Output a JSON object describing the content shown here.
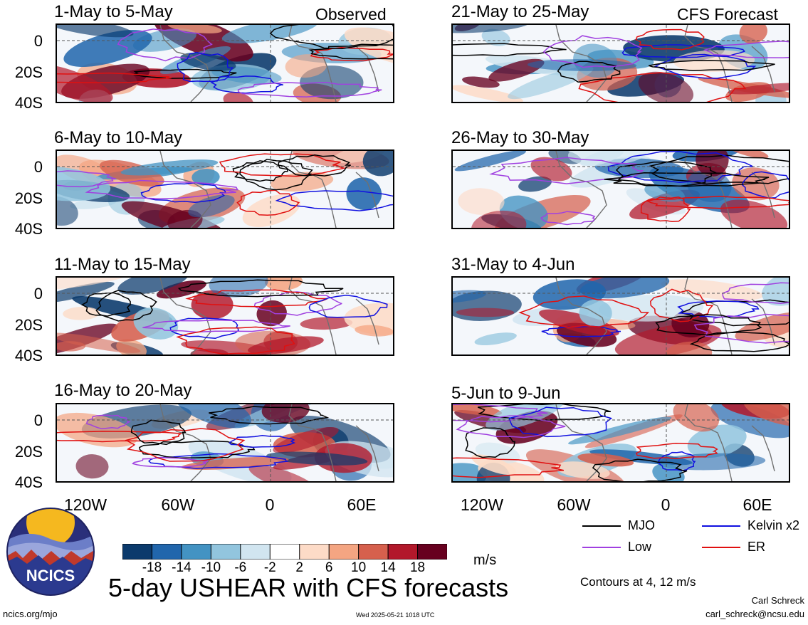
{
  "chart_data": {
    "type": "heatmap",
    "variable": "5-day USHEAR with CFS forecasts",
    "units": "m/s",
    "x_ticks": [
      "120W",
      "60W",
      "0",
      "60E"
    ],
    "y_ticks": [
      "0",
      "20S",
      "40S"
    ],
    "xlim": [
      -150,
      180
    ],
    "ylim": [
      -40,
      10
    ],
    "colorbar": {
      "labels": [
        "-18",
        "-14",
        "-10",
        "-6",
        "-2",
        "2",
        "6",
        "10",
        "14",
        "18"
      ],
      "colors": [
        "#0b3a6c",
        "#2166ac",
        "#4393c3",
        "#92c5de",
        "#d1e5f0",
        "#ffffff",
        "#fddbc7",
        "#f4a582",
        "#d6604d",
        "#b2182b",
        "#67001f"
      ]
    },
    "observed_tag": "Observed",
    "forecast_tag": "CFS Forecast",
    "panels": [
      {
        "title": "1-May to 5-May"
      },
      {
        "title": "6-May to 10-May"
      },
      {
        "title": "11-May to 15-May"
      },
      {
        "title": "16-May to 20-May"
      },
      {
        "title": "21-May to 25-May"
      },
      {
        "title": "26-May to 30-May"
      },
      {
        "title": "31-May to 4-Jun"
      },
      {
        "title": "5-Jun to 9-Jun"
      }
    ],
    "contour_legend": [
      {
        "name": "MJO",
        "color": "#000000"
      },
      {
        "name": "Kelvin x2",
        "color": "#1010e0"
      },
      {
        "name": "Low",
        "color": "#a040e0"
      },
      {
        "name": "ER",
        "color": "#e01010"
      }
    ],
    "contour_note": "Contours at 4, 12 m/s"
  },
  "footer": {
    "logo_text": "NCICS",
    "title": "5-day USHEAR with CFS forecasts",
    "url": "ncics.org/mjo",
    "timestamp": "Wed 2025-05-21 1018 UTC",
    "author": "Carl Schreck",
    "email": "carl_schreck@ncsu.edu"
  }
}
